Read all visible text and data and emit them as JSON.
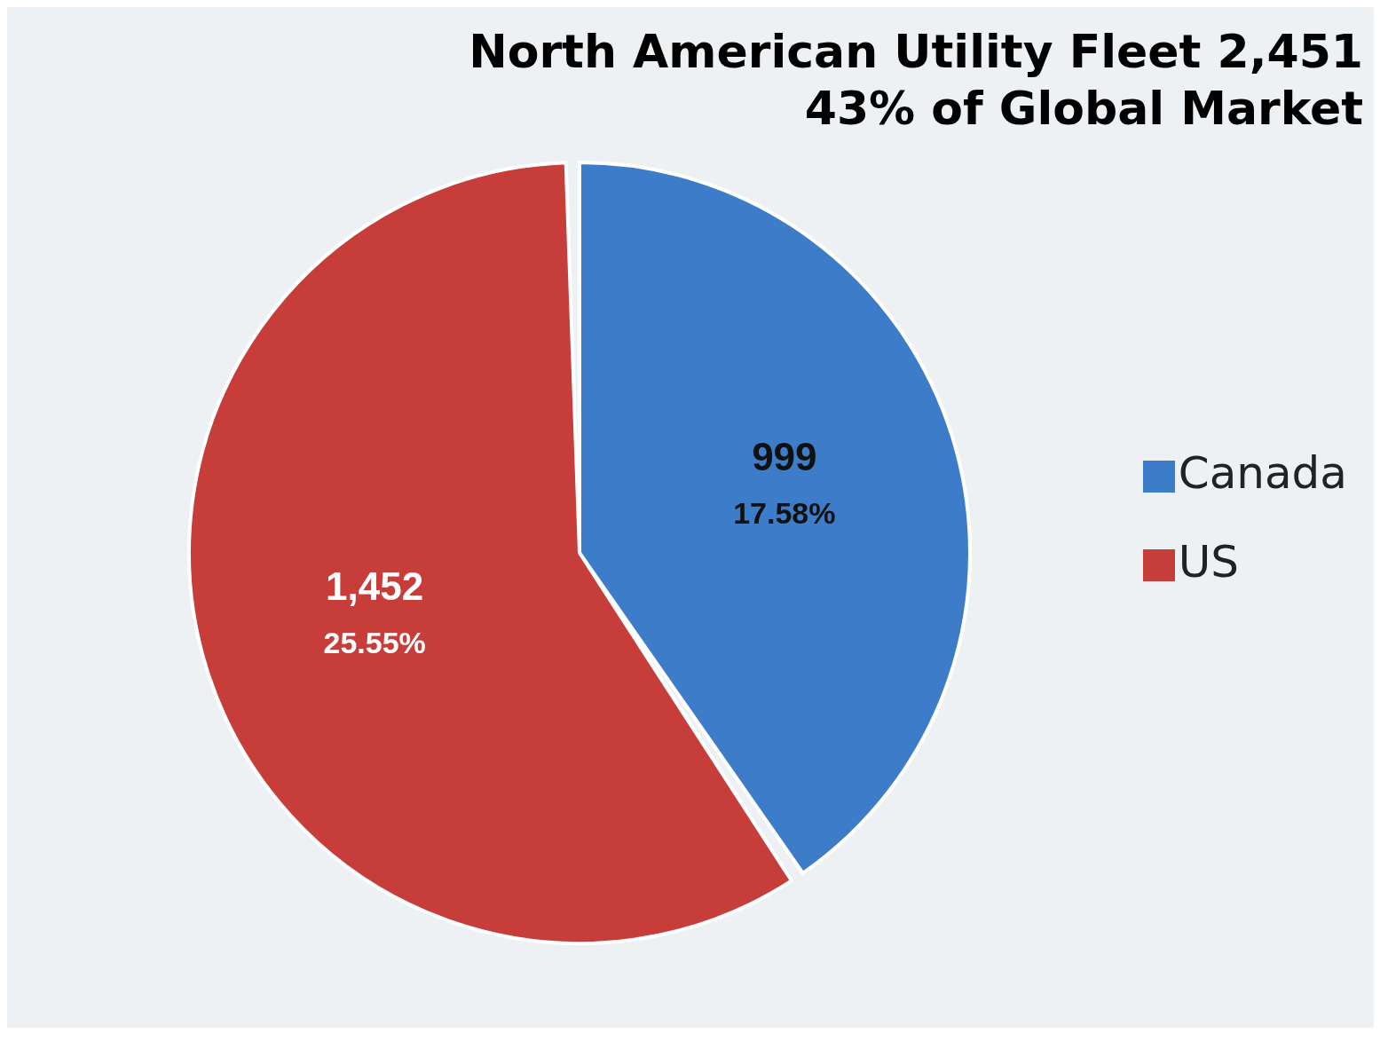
{
  "chart_data": {
    "type": "pie",
    "title": "North American Utility Fleet 2,451",
    "subtitle": "43% of Global Market",
    "categories": [
      "Canada",
      "US"
    ],
    "values": [
      999,
      1452
    ],
    "colors": [
      "#3d7cc9",
      "#c63d3a"
    ],
    "value_labels": [
      "999",
      "1,452"
    ],
    "annotations": [
      {
        "text": "17.58%",
        "x": "Canada"
      },
      {
        "text": "25.55%",
        "x": "US"
      }
    ],
    "legend": "right"
  }
}
